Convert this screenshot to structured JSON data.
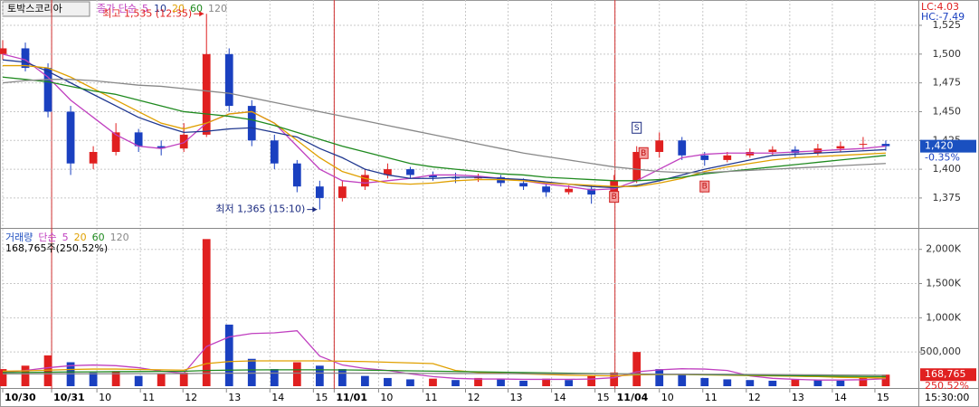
{
  "symbol": "토박스코리아",
  "time": "15:30:00",
  "chart_data": [
    {
      "type": "candlestick",
      "legend_title": "종가 단순",
      "lc": "LC:4.03",
      "hc": "HC:-7.49",
      "last": {
        "value": 1420,
        "label": "1,420",
        "change": "-0.35%"
      },
      "x": [
        0,
        1,
        2,
        3,
        4,
        5,
        6,
        7,
        8,
        9,
        10,
        11,
        12,
        13,
        14,
        15,
        16,
        17,
        18,
        19,
        20,
        21,
        22,
        23,
        24,
        25,
        26,
        27,
        28,
        29,
        30,
        31,
        32,
        33,
        34,
        35,
        36,
        37,
        38,
        39
      ],
      "open": [
        1500,
        1505,
        1488,
        1450,
        1405,
        1415,
        1432,
        1420,
        1418,
        1430,
        1500,
        1455,
        1425,
        1405,
        1385,
        1375,
        1385,
        1395,
        1400,
        1395,
        1393,
        1392,
        1393,
        1388,
        1385,
        1380,
        1383,
        1378,
        1390,
        1415,
        1425,
        1412,
        1408,
        1412,
        1415,
        1417,
        1414,
        1418,
        1422,
        1422
      ],
      "high": [
        1512,
        1510,
        1492,
        1455,
        1420,
        1440,
        1435,
        1425,
        1440,
        1535,
        1505,
        1460,
        1430,
        1408,
        1390,
        1390,
        1400,
        1405,
        1402,
        1398,
        1397,
        1396,
        1395,
        1392,
        1388,
        1386,
        1386,
        1395,
        1420,
        1432,
        1428,
        1415,
        1415,
        1418,
        1420,
        1420,
        1422,
        1424,
        1428,
        1425
      ],
      "low": [
        1495,
        1485,
        1445,
        1395,
        1400,
        1412,
        1415,
        1412,
        1415,
        1428,
        1450,
        1420,
        1400,
        1380,
        1365,
        1372,
        1382,
        1392,
        1392,
        1390,
        1388,
        1389,
        1385,
        1382,
        1376,
        1378,
        1370,
        1376,
        1388,
        1410,
        1408,
        1403,
        1406,
        1410,
        1412,
        1410,
        1412,
        1415,
        1417,
        1416
      ],
      "close": [
        1505,
        1488,
        1450,
        1405,
        1415,
        1432,
        1420,
        1418,
        1430,
        1500,
        1455,
        1425,
        1405,
        1385,
        1375,
        1385,
        1395,
        1400,
        1395,
        1393,
        1392,
        1393,
        1388,
        1385,
        1380,
        1383,
        1378,
        1390,
        1415,
        1425,
        1412,
        1408,
        1412,
        1415,
        1417,
        1414,
        1418,
        1420,
        1422,
        1420
      ],
      "up_color": "#e02020",
      "down_color": "#1a40c0",
      "series": [
        {
          "name": "5",
          "color": "#c040c0",
          "values": [
            1500,
            1495,
            1480,
            1460,
            1445,
            1430,
            1420,
            1418,
            1423,
            1440,
            1448,
            1450,
            1440,
            1420,
            1400,
            1390,
            1388,
            1390,
            1392,
            1395,
            1395,
            1394,
            1392,
            1390,
            1387,
            1385,
            1382,
            1383,
            1390,
            1400,
            1410,
            1413,
            1414,
            1414,
            1414,
            1415,
            1416,
            1417,
            1418,
            1420
          ]
        },
        {
          "name": "10",
          "color": "#203890",
          "values": [
            1495,
            1493,
            1485,
            1475,
            1465,
            1455,
            1445,
            1438,
            1432,
            1433,
            1435,
            1436,
            1432,
            1428,
            1418,
            1410,
            1400,
            1395,
            1392,
            1392,
            1393,
            1393,
            1392,
            1391,
            1389,
            1387,
            1385,
            1384,
            1386,
            1390,
            1395,
            1400,
            1404,
            1408,
            1412,
            1413,
            1414,
            1415,
            1416,
            1417
          ]
        },
        {
          "name": "20",
          "color": "#e0a000",
          "values": [
            1490,
            1490,
            1488,
            1480,
            1470,
            1460,
            1450,
            1440,
            1435,
            1440,
            1448,
            1450,
            1440,
            1425,
            1410,
            1398,
            1392,
            1388,
            1387,
            1388,
            1390,
            1391,
            1391,
            1390,
            1388,
            1387,
            1386,
            1385,
            1385,
            1388,
            1392,
            1398,
            1402,
            1405,
            1408,
            1410,
            1411,
            1412,
            1413,
            1414
          ]
        },
        {
          "name": "60",
          "color": "#1f8a1f",
          "values": [
            1480,
            1478,
            1476,
            1472,
            1468,
            1465,
            1460,
            1455,
            1450,
            1448,
            1446,
            1443,
            1438,
            1432,
            1426,
            1420,
            1415,
            1410,
            1405,
            1402,
            1400,
            1398,
            1396,
            1395,
            1393,
            1392,
            1391,
            1390,
            1390,
            1391,
            1393,
            1396,
            1398,
            1400,
            1402,
            1404,
            1406,
            1408,
            1410,
            1412
          ]
        },
        {
          "name": "120",
          "color": "#888888",
          "values": [
            1475,
            1477,
            1478,
            1478,
            1477,
            1475,
            1473,
            1472,
            1470,
            1468,
            1466,
            1462,
            1458,
            1454,
            1450,
            1446,
            1442,
            1438,
            1434,
            1430,
            1426,
            1422,
            1418,
            1414,
            1411,
            1408,
            1405,
            1402,
            1400,
            1398,
            1397,
            1397,
            1398,
            1399,
            1400,
            1401,
            1402,
            1403,
            1404,
            1405
          ]
        }
      ],
      "annotations": [
        {
          "text": "최고 1,535 (12:35)",
          "x": 9,
          "y": 1535,
          "color": "#e02020"
        },
        {
          "text": "최저 1,365 (15:10)",
          "x": 14,
          "y": 1365,
          "color": "#1a2a80"
        }
      ],
      "signals": [
        {
          "label": "B",
          "x": 27,
          "y": 1376
        },
        {
          "label": "S",
          "x": 28,
          "y": 1436
        },
        {
          "label": "B",
          "x": 28.3,
          "y": 1414
        },
        {
          "label": "B",
          "x": 31,
          "y": 1385
        }
      ],
      "xlim": [
        0,
        40.44
      ],
      "ylim": [
        1349,
        1547
      ],
      "yticks": [
        {
          "value": 1375,
          "label": "1,375"
        },
        {
          "value": 1400,
          "label": "1,400"
        },
        {
          "value": 1425,
          "label": "1,425"
        },
        {
          "value": 1450,
          "label": "1,450"
        },
        {
          "value": 1475,
          "label": "1,475"
        },
        {
          "value": 1500,
          "label": "1,500"
        },
        {
          "value": 1525,
          "label": "1,525"
        }
      ],
      "grid": true
    },
    {
      "type": "bar",
      "title": "거래량",
      "legend_title": "단순",
      "subtitle": "168,765주(250.52%)",
      "last": {
        "value": 168765,
        "label": "168,765",
        "ratio": "250.52%"
      },
      "x": [
        0,
        1,
        2,
        3,
        4,
        5,
        6,
        7,
        8,
        9,
        10,
        11,
        12,
        13,
        14,
        15,
        16,
        17,
        18,
        19,
        20,
        21,
        22,
        23,
        24,
        25,
        26,
        27,
        28,
        29,
        30,
        31,
        32,
        33,
        34,
        35,
        36,
        37,
        38,
        39
      ],
      "values": [
        250000,
        300000,
        450000,
        350000,
        200000,
        220000,
        150000,
        180000,
        200000,
        2150000,
        900000,
        400000,
        250000,
        350000,
        300000,
        250000,
        150000,
        120000,
        100000,
        110000,
        90000,
        120000,
        100000,
        80000,
        110000,
        90000,
        150000,
        200000,
        500000,
        250000,
        180000,
        120000,
        100000,
        90000,
        80000,
        100000,
        90000,
        80000,
        120000,
        168765
      ],
      "up_color": "#e02020",
      "down_color": "#1a40c0",
      "series": [
        {
          "name": "5",
          "color": "#c040c0",
          "values": [
            200000,
            230000,
            270000,
            300000,
            310000,
            300000,
            270000,
            220000,
            190000,
            580000,
            720000,
            770000,
            780000,
            810000,
            440000,
            310000,
            260000,
            230000,
            180000,
            140000,
            115000,
            105000,
            105000,
            100000,
            100000,
            100000,
            105000,
            125000,
            210000,
            240000,
            255000,
            250000,
            230000,
            150000,
            115000,
            100000,
            90000,
            90000,
            95000,
            110000
          ]
        },
        {
          "name": "20",
          "color": "#e0a000",
          "values": [
            220000,
            225000,
            235000,
            245000,
            250000,
            250000,
            245000,
            240000,
            235000,
            330000,
            360000,
            370000,
            370000,
            370000,
            370000,
            365000,
            360000,
            350000,
            340000,
            330000,
            230000,
            200000,
            190000,
            180000,
            170000,
            160000,
            155000,
            150000,
            165000,
            170000,
            170000,
            165000,
            160000,
            155000,
            150000,
            145000,
            140000,
            130000,
            125000,
            120000
          ]
        },
        {
          "name": "60",
          "color": "#1f8a1f",
          "values": [
            200000,
            202000,
            205000,
            208000,
            210000,
            212000,
            214000,
            216000,
            218000,
            230000,
            235000,
            238000,
            240000,
            240000,
            240000,
            238000,
            235000,
            230000,
            225000,
            220000,
            215000,
            210000,
            205000,
            200000,
            195000,
            190000,
            185000,
            180000,
            178000,
            176000,
            174000,
            170000,
            166000,
            162000,
            158000,
            154000,
            150000,
            146000,
            142000,
            140000
          ]
        },
        {
          "name": "120",
          "color": "#888888",
          "values": [
            180000,
            180000,
            181000,
            181000,
            182000,
            182000,
            183000,
            183000,
            184000,
            188000,
            190000,
            191000,
            192000,
            192000,
            192000,
            191000,
            190000,
            189000,
            188000,
            187000,
            186000,
            185000,
            184000,
            183000,
            182000,
            181000,
            180000,
            179000,
            178000,
            177000,
            176000,
            175000,
            174000,
            172000,
            170000,
            168000,
            166000,
            164000,
            162000,
            160000
          ]
        }
      ],
      "xlim": [
        0,
        40.44
      ],
      "ylim": [
        0,
        2300000
      ],
      "yticks": [
        {
          "value": 500000,
          "label": "500,000"
        },
        {
          "value": 1000000,
          "label": "1,000K"
        },
        {
          "value": 1500000,
          "label": "1,500K"
        },
        {
          "value": 2000000,
          "label": "2,000K"
        }
      ],
      "xticks": [
        {
          "value": 0,
          "label": "10/30"
        },
        {
          "value": 2.16,
          "label": "10/31"
        },
        {
          "value": 4.16,
          "label": "10"
        },
        {
          "value": 6.08,
          "label": "11"
        },
        {
          "value": 7.96,
          "label": "12"
        },
        {
          "value": 9.88,
          "label": "13"
        },
        {
          "value": 11.8,
          "label": "14"
        },
        {
          "value": 13.72,
          "label": "15"
        },
        {
          "value": 14.64,
          "label": "11/01"
        },
        {
          "value": 16.6,
          "label": "10"
        },
        {
          "value": 18.56,
          "label": "11"
        },
        {
          "value": 20.44,
          "label": "12"
        },
        {
          "value": 22.32,
          "label": "13"
        },
        {
          "value": 24.24,
          "label": "14"
        },
        {
          "value": 26.16,
          "label": "15"
        },
        {
          "value": 27.04,
          "label": "11/04"
        },
        {
          "value": 29,
          "label": "10"
        },
        {
          "value": 30.92,
          "label": "11"
        },
        {
          "value": 32.84,
          "label": "12"
        },
        {
          "value": 34.76,
          "label": "13"
        },
        {
          "value": 36.64,
          "label": "14"
        },
        {
          "value": 38.52,
          "label": "15"
        }
      ],
      "grid": true
    }
  ]
}
